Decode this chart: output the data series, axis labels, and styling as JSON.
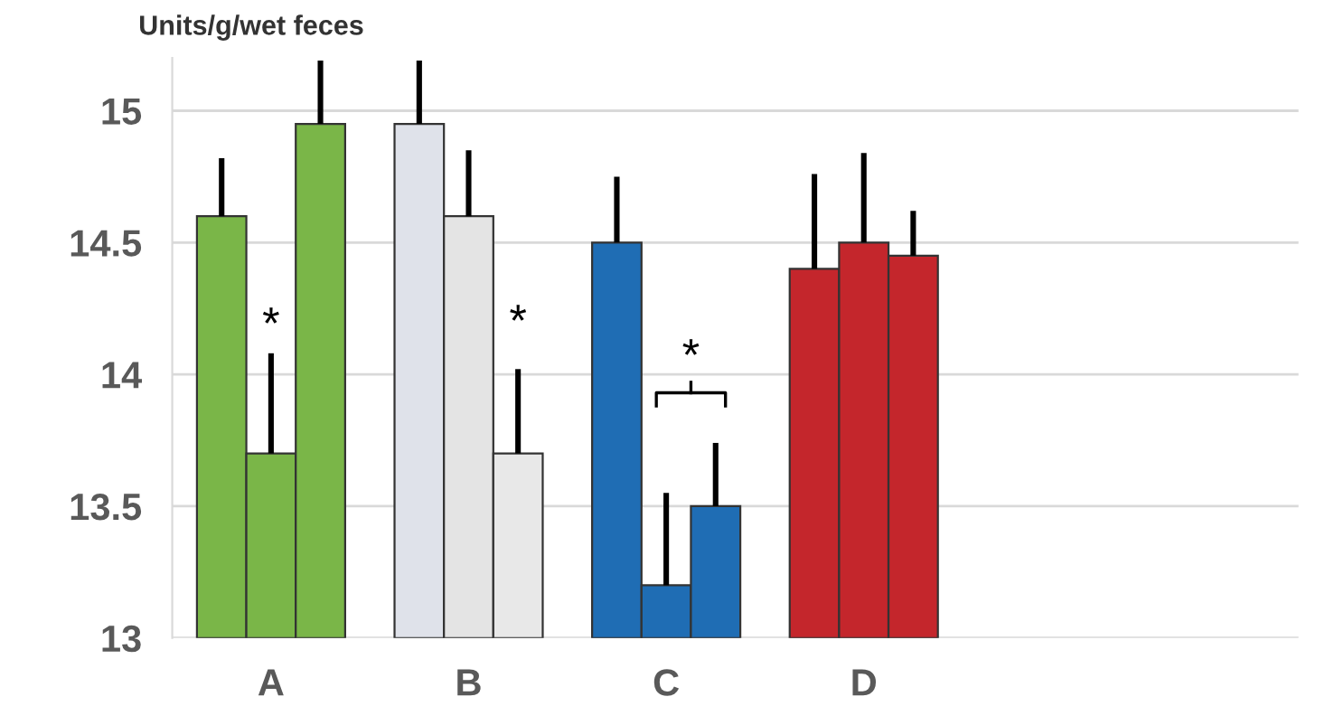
{
  "chart_data": {
    "type": "bar",
    "ylabel": "Units/g/wet feces",
    "categories": [
      "A",
      "B",
      "C",
      "D"
    ],
    "series": [
      {
        "colors": [
          "#7ab648",
          "#dfe2ea",
          "#1f6db4",
          "#c4262c"
        ],
        "values": [
          14.6,
          14.95,
          14.5,
          14.4
        ],
        "errors": [
          [
            14.6,
            14.82
          ],
          [
            14.95,
            15.19
          ],
          [
            14.5,
            14.75
          ],
          [
            14.4,
            14.76
          ]
        ]
      },
      {
        "colors": [
          "#7ab648",
          "#e4e4e4",
          "#1f6db4",
          "#c4262c"
        ],
        "values": [
          13.7,
          14.6,
          13.2,
          14.5
        ],
        "errors": [
          [
            13.7,
            14.08
          ],
          [
            14.6,
            14.85
          ],
          [
            13.2,
            13.55
          ],
          [
            14.5,
            14.84
          ]
        ]
      },
      {
        "colors": [
          "#7ab648",
          "#e8e8e8",
          "#1f6db4",
          "#c4262c"
        ],
        "values": [
          14.95,
          13.7,
          13.5,
          14.45
        ],
        "errors": [
          [
            14.95,
            15.19
          ],
          [
            13.7,
            14.02
          ],
          [
            13.5,
            13.74
          ],
          [
            14.45,
            14.62
          ]
        ]
      }
    ],
    "annotations": [
      {
        "text": "*",
        "x": "A",
        "y": 14.08
      },
      "*",
      "*"
    ],
    "ylim": [
      13,
      15.2
    ],
    "yticks": [
      13,
      13.5,
      14,
      14.5,
      15
    ],
    "grid": "y"
  }
}
